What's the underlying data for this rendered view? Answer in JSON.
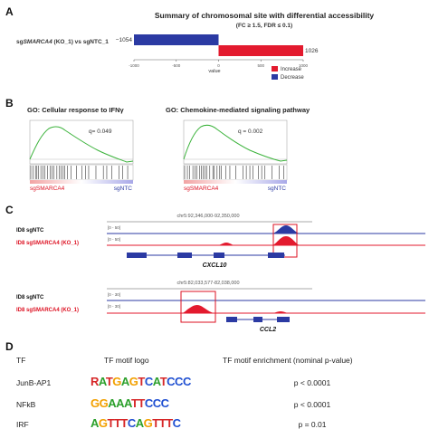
{
  "panelA": {
    "label": "A",
    "title": "Summary of chromosomal site with differential accessibility",
    "subtitle": "(FC ≥ 1.5, FDR ≤ 0.1)",
    "comparison_prefix": "sg",
    "comparison_gene": "SMARCA4",
    "comparison_suffix": " (KO_1) vs sgNTC_1",
    "xlabel": "value",
    "colors": {
      "increase": "#e31a2e",
      "decrease": "#2b3aa3"
    },
    "legend": [
      "Increase",
      "Decrease"
    ],
    "chart_data": {
      "type": "bar",
      "orientation": "horizontal",
      "xlim": [
        -1000,
        1000
      ],
      "xticks": [
        "-1000",
        "-500",
        "0",
        "500",
        "1000"
      ],
      "series": [
        {
          "name": "Decrease",
          "values": [
            -1054
          ],
          "label": "−1054"
        },
        {
          "name": "Increase",
          "values": [
            1026
          ],
          "label": "1026"
        }
      ]
    }
  },
  "panelB": {
    "label": "B",
    "plots": [
      {
        "title": "GO: Cellular response to IFNγ",
        "q": "q= 0.049",
        "left": "sgSMARCA4",
        "right": "sgNTC"
      },
      {
        "title": "GO: Chemokine-mediated signaling pathway",
        "q": "q = 0.002",
        "left": "sgSMARCA4",
        "right": "sgNTC"
      }
    ]
  },
  "panelC": {
    "label": "C",
    "loci": [
      {
        "coords": "chr5:92,346,000-92,350,000",
        "ntc_label": "ID8 sgNTC",
        "ko_label": "ID8 sgSMARCA4 (KO_1)",
        "range": "[0 - 50]",
        "gene": "CXCL10"
      },
      {
        "coords": "chr5:82,033,577-82,038,000",
        "ntc_label": "ID8 sgNTC",
        "ko_label": "ID8 sgSMARCA4 (KO_1)",
        "range": "[0 - 30]",
        "gene": "CCL2"
      }
    ]
  },
  "panelD": {
    "label": "D",
    "headers": {
      "tf": "TF",
      "logo": "TF motif logo",
      "enrich": "TF motif enrichment (nominal p-value)"
    },
    "rows": [
      {
        "tf": "JunB-AP1",
        "logo": "RATGAGTCATCCC",
        "p": "p < 0.0001"
      },
      {
        "tf": "NFkB",
        "logo": "GGAAATTCCC",
        "p": "p < 0.0001"
      },
      {
        "tf": "IRF",
        "logo": "AGTTTCAGTTTC",
        "p": "p = 0.01"
      }
    ]
  }
}
